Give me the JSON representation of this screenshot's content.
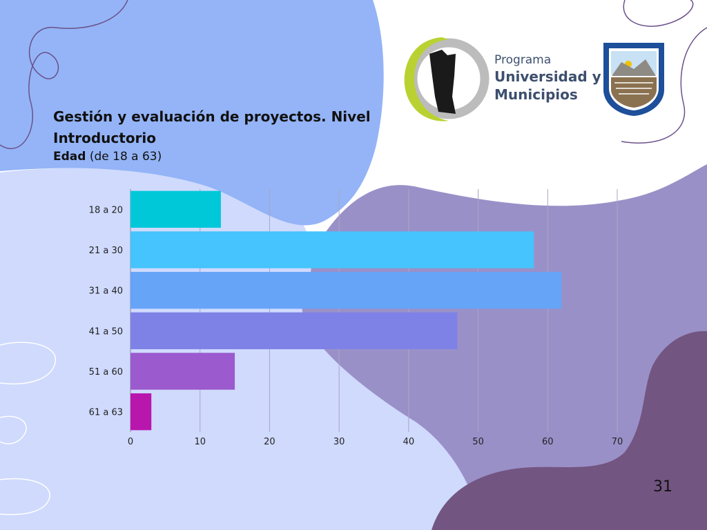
{
  "title": "Gestión y evaluación de proyectos. Nivel Introductorio",
  "subtitle_bold": "Edad",
  "subtitle_rest": " (de 18 a 63)",
  "page_number": "31",
  "logo": {
    "line1": "Programa",
    "line2": "Universidad y",
    "line3": "Municipios"
  },
  "colors": {
    "bg_blue": "#94b4f7",
    "bg_light": "#cfdafd",
    "bg_lavender": "#9a90c8",
    "bg_purple": "#735581",
    "logo_green": "#b9d232",
    "logo_gray": "#bcbcbc",
    "shield_blue": "#1d4f9a"
  },
  "chart_data": {
    "type": "bar",
    "orientation": "horizontal",
    "categories": [
      "18 a 20",
      "21 a 30",
      "31 a 40",
      "41 a 50",
      "51 a 60",
      "61 a 63"
    ],
    "values": [
      13,
      58,
      62,
      47,
      15,
      3
    ],
    "colors": [
      "#00c8d8",
      "#45c4fd",
      "#66a4f8",
      "#7e82e6",
      "#9b5ace",
      "#b916ad"
    ],
    "xlim": [
      0,
      70
    ],
    "xticks": [
      0,
      10,
      20,
      30,
      40,
      50,
      60,
      70
    ],
    "grid": true
  }
}
